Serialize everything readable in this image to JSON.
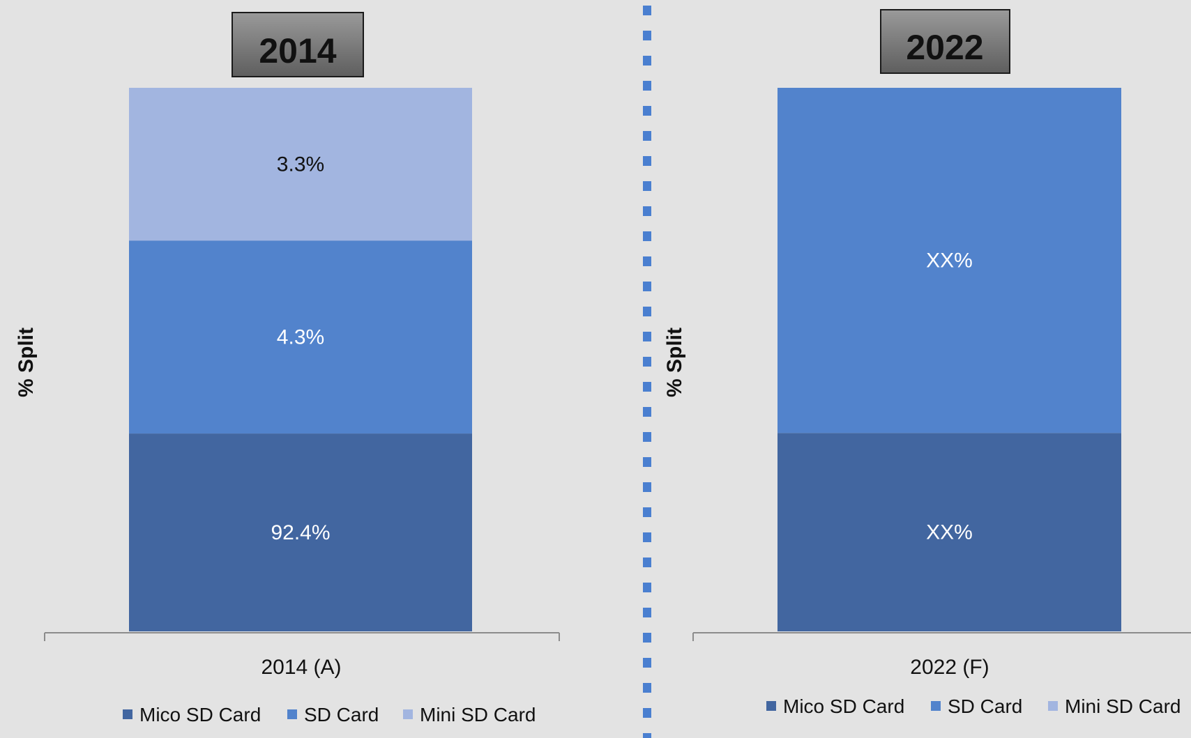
{
  "chart_data": [
    {
      "type": "bar",
      "stacked": true,
      "title": "2014",
      "ylabel": "% Split",
      "categories": [
        "2014 (A)"
      ],
      "series": [
        {
          "name": "Mico SD Card",
          "values": [
            92.4
          ],
          "labels": [
            "92.4%"
          ],
          "color": "#4266a0"
        },
        {
          "name": "SD Card",
          "values": [
            4.3
          ],
          "labels": [
            "4.3%"
          ],
          "color": "#5283cc"
        },
        {
          "name": "Mini SD Card",
          "values": [
            3.3
          ],
          "labels": [
            "3.3%"
          ],
          "color": "#a2b5e0"
        }
      ],
      "legend": "bottom"
    },
    {
      "type": "bar",
      "stacked": true,
      "title": "2022",
      "ylabel": "% Split",
      "categories": [
        "2022 (F)"
      ],
      "series": [
        {
          "name": "Mico SD Card",
          "values": [
            null
          ],
          "labels": [
            "XX%"
          ],
          "color": "#4266a0"
        },
        {
          "name": "SD Card",
          "values": [
            null
          ],
          "labels": [
            "XX%"
          ],
          "color": "#5283cc"
        },
        {
          "name": "Mini SD Card",
          "values": [
            null
          ],
          "labels": [
            ""
          ],
          "color": "#a2b5e0"
        }
      ],
      "legend": "bottom"
    }
  ],
  "colors": {
    "divider": "#4a7fd0",
    "background": "#e3e3e3",
    "title_box": "#6b6b6b"
  }
}
